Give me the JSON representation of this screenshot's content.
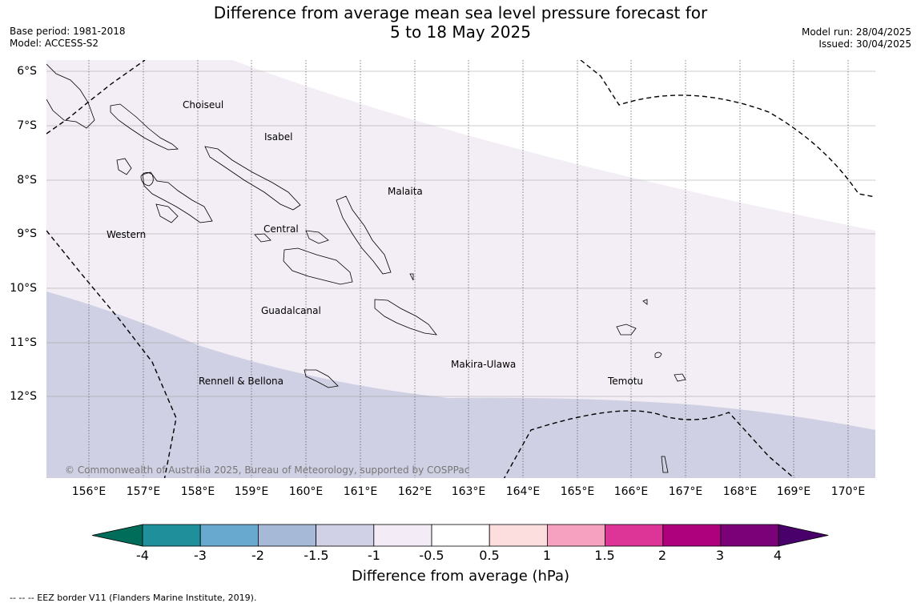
{
  "header": {
    "title_line1": "Difference from average mean sea level pressure forecast for",
    "title_line2": "5 to 18 May 2025",
    "base_period": "Base period: 1981-2018",
    "model": "Model: ACCESS-S2",
    "model_run": "Model run: 28/04/2025",
    "issued": "Issued: 30/04/2025"
  },
  "map": {
    "lat_labels": [
      "6°S",
      "7°S",
      "8°S",
      "9°S",
      "10°S",
      "11°S",
      "12°S"
    ],
    "lon_labels": [
      "156°E",
      "157°E",
      "158°E",
      "159°E",
      "160°E",
      "161°E",
      "162°E",
      "163°E",
      "164°E",
      "165°E",
      "166°E",
      "167°E",
      "168°E",
      "169°E",
      "170°E"
    ],
    "regions": [
      "Choiseul",
      "Isabel",
      "Malaita",
      "Western",
      "Central",
      "Guadalcanal",
      "Makira-Ulawa",
      "Rennell & Bellona",
      "Temotu"
    ],
    "copyright": "© Commonwealth of Australia 2025, Bureau of Meteorology, supported by COSPPac",
    "shading_colors": {
      "band_-1_to_-0.5": "#f3edf5",
      "band_-1.5_to_-1": "#cfd0e3"
    }
  },
  "colorbar": {
    "ticks": [
      "-4",
      "-3",
      "-2",
      "-1.5",
      "-1",
      "-0.5",
      "0.5",
      "1",
      "1.5",
      "2",
      "3",
      "4"
    ],
    "colors": [
      "#006d5b",
      "#1f8f9b",
      "#67a9cf",
      "#a6b9d6",
      "#d0d1e6",
      "#f3ecf6",
      "#ffffff",
      "#fddede",
      "#f7a1c0",
      "#dd3497",
      "#ae017e",
      "#7a0177",
      "#49006a"
    ],
    "label": "Difference from average (hPa)"
  },
  "footnote": "--  --  -- EEZ border V11 (Flanders Marine Institute, 2019)."
}
